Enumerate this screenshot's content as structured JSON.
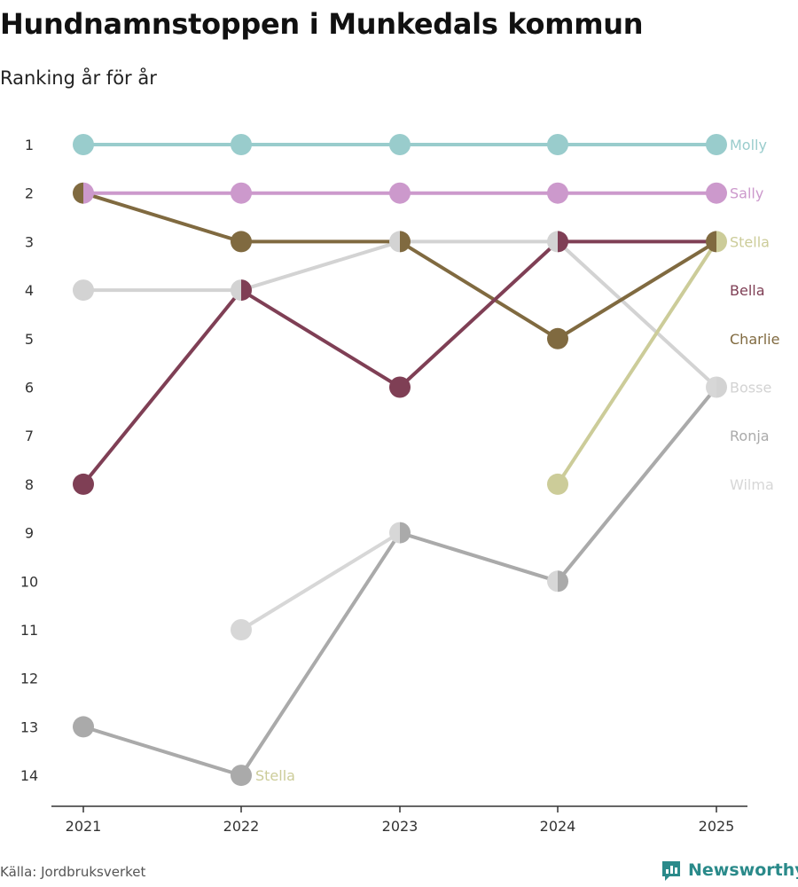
{
  "title": "Hundnamnstoppen i Munkedals kommun",
  "subtitle": "Ranking år för år",
  "source": "Källa: Jordbruksverket",
  "brand": "Newsworthy",
  "brand_icon": "bar-chart-icon",
  "chart_data": {
    "type": "line",
    "title": "Hundnamnstoppen i Munkedals kommun",
    "subtitle": "Ranking år för år",
    "x": [
      "2021",
      "2022",
      "2023",
      "2024",
      "2025"
    ],
    "y_ticks": [
      1,
      2,
      3,
      4,
      5,
      6,
      7,
      8,
      9,
      10,
      11,
      12,
      13,
      14
    ],
    "ylim": [
      1,
      14
    ],
    "y_inverted": true,
    "series": [
      {
        "name": "Molly",
        "color": "#99cccc",
        "values": [
          1,
          1,
          1,
          1,
          1
        ]
      },
      {
        "name": "Sally",
        "color": "#cc99cc",
        "values": [
          2,
          2,
          2,
          2,
          2
        ]
      },
      {
        "name": "Stella",
        "color": "#cccc99",
        "values": [
          null,
          null,
          null,
          8,
          3
        ]
      },
      {
        "name": "Bella",
        "color": "#7f3f55",
        "values": [
          8,
          4,
          6,
          3,
          3
        ]
      },
      {
        "name": "Charlie",
        "color": "#806a40",
        "values": [
          2,
          3,
          3,
          5,
          3
        ]
      },
      {
        "name": "Bosse",
        "color": "#d3d3d3",
        "values": [
          4,
          4,
          3,
          3,
          6
        ]
      },
      {
        "name": "Ronja",
        "color": "#aaaaaa",
        "values": [
          13,
          14,
          9,
          10,
          6
        ]
      },
      {
        "name": "Wilma",
        "color": "#d7d7d7",
        "values": [
          null,
          11,
          9,
          10,
          6
        ]
      }
    ],
    "annotations": [
      {
        "text": "Stella",
        "x": "2022",
        "y": 14,
        "color": "#cccc99"
      }
    ],
    "legend_right_labels": [
      "Molly",
      "Sally",
      "Stella",
      "Bella",
      "Charlie",
      "Bosse",
      "Ronja",
      "Wilma"
    ]
  }
}
